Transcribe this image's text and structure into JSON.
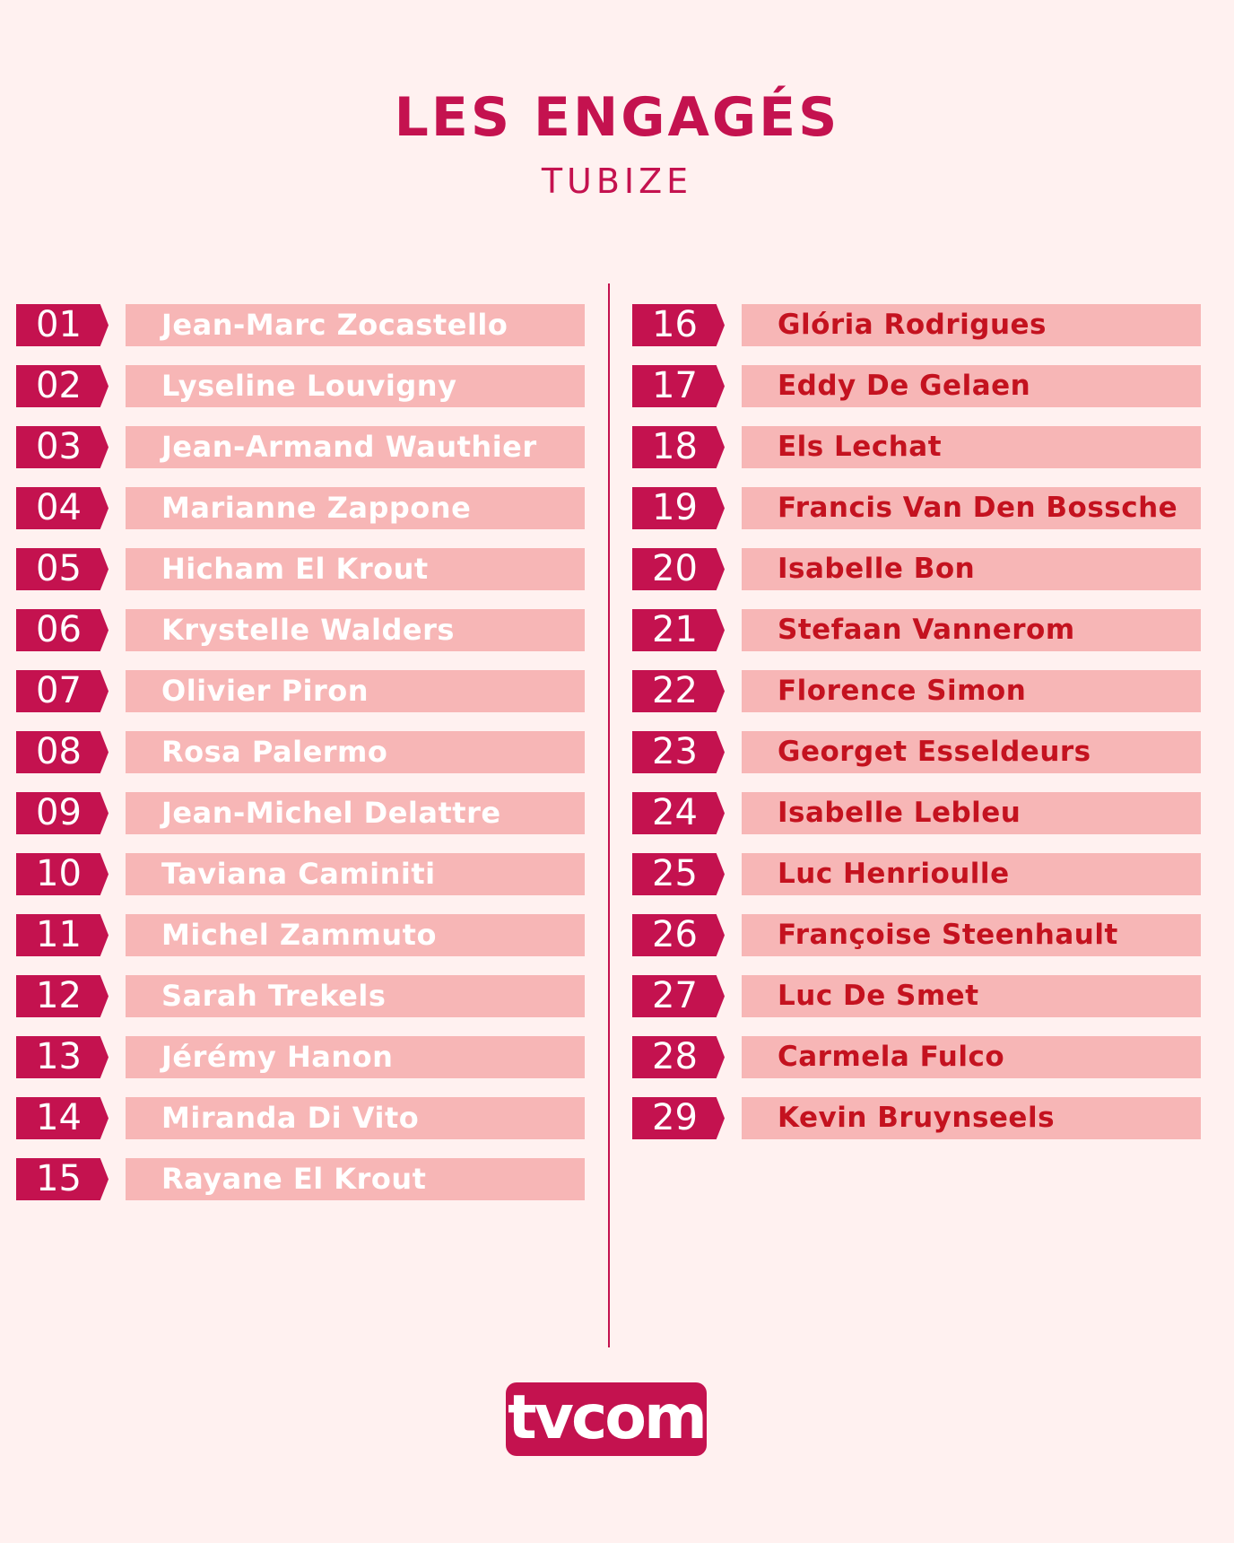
{
  "header": {
    "title": "LES ENGAGÉS",
    "subtitle": "TUBIZE"
  },
  "colors": {
    "accent": "#c4124f",
    "row_bg": "#f7b6b6",
    "page_bg": "#fff1f0",
    "right_name_text": "#c4121f"
  },
  "left_column": [
    {
      "num": "01",
      "name": "Jean-Marc Zocastello"
    },
    {
      "num": "02",
      "name": "Lyseline Louvigny"
    },
    {
      "num": "03",
      "name": "Jean-Armand Wauthier"
    },
    {
      "num": "04",
      "name": "Marianne Zappone"
    },
    {
      "num": "05",
      "name": "Hicham El Krout"
    },
    {
      "num": "06",
      "name": "Krystelle Walders"
    },
    {
      "num": "07",
      "name": "Olivier Piron"
    },
    {
      "num": "08",
      "name": "Rosa Palermo"
    },
    {
      "num": "09",
      "name": "Jean-Michel Delattre"
    },
    {
      "num": "10",
      "name": "Taviana Caminiti"
    },
    {
      "num": "11",
      "name": "Michel Zammuto"
    },
    {
      "num": "12",
      "name": "Sarah Trekels"
    },
    {
      "num": "13",
      "name": "Jérémy Hanon"
    },
    {
      "num": "14",
      "name": "Miranda Di Vito"
    },
    {
      "num": "15",
      "name": "Rayane El Krout"
    }
  ],
  "right_column": [
    {
      "num": "16",
      "name": "Glória Rodrigues"
    },
    {
      "num": "17",
      "name": "Eddy De Gelaen"
    },
    {
      "num": "18",
      "name": "Els Lechat"
    },
    {
      "num": "19",
      "name": "Francis Van Den Bossche"
    },
    {
      "num": "20",
      "name": "Isabelle Bon"
    },
    {
      "num": "21",
      "name": "Stefaan Vannerom"
    },
    {
      "num": "22",
      "name": "Florence Simon"
    },
    {
      "num": "23",
      "name": "Georget Esseldeurs"
    },
    {
      "num": "24",
      "name": "Isabelle Lebleu"
    },
    {
      "num": "25",
      "name": "Luc Henrioulle"
    },
    {
      "num": "26",
      "name": "Françoise Steenhault"
    },
    {
      "num": "27",
      "name": "Luc De Smet"
    },
    {
      "num": "28",
      "name": "Carmela Fulco"
    },
    {
      "num": "29",
      "name": "Kevin Bruynseels"
    }
  ],
  "logo": {
    "text": "tvcom"
  }
}
